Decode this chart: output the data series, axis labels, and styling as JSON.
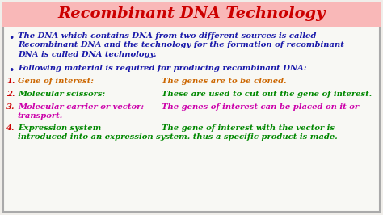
{
  "title": "Recombinant DNA Technology",
  "title_color": "#cc0000",
  "title_bg": "#f9b8b8",
  "background_color": "#f0eeea",
  "content_bg": "#f8f8f4",
  "border_color": "#555555",
  "bullet1_line1": "The DNA which contains DNA from two different sources is called",
  "bullet1_line2": "Recombinant DNA and the technology for the formation of recombinant",
  "bullet1_line3": "DNA is called DNA technology.",
  "bullet2_text": "Following material is required for producing recombinant DNA:",
  "items": [
    {
      "num": "1.",
      "label": "Gene of interest:",
      "label_color": "#cc6600",
      "desc": "The genes are to be cloned.",
      "desc_color": "#cc6600"
    },
    {
      "num": "2.",
      "label": "Molecular scissors:",
      "label_color": "#008800",
      "desc": "These are used to cut out the gene of interest.",
      "desc_color": "#008800"
    },
    {
      "num": "3.",
      "label": "Molecular carrier or vector:",
      "label_color": "#cc00aa",
      "desc": "The genes of interest can be placed on it or",
      "desc2": "transport.",
      "desc_color": "#cc00aa"
    },
    {
      "num": "4.",
      "label": "Expression system",
      "label_color": "#008800",
      "desc": "The gene of interest with the vector is",
      "desc2": "introduced into an expression system. thus a specific product is made.",
      "desc_color": "#008800"
    }
  ],
  "bullet_color": "#1a1aaa",
  "num_color": "#cc0000",
  "figsize": [
    4.74,
    2.66
  ],
  "dpi": 100
}
